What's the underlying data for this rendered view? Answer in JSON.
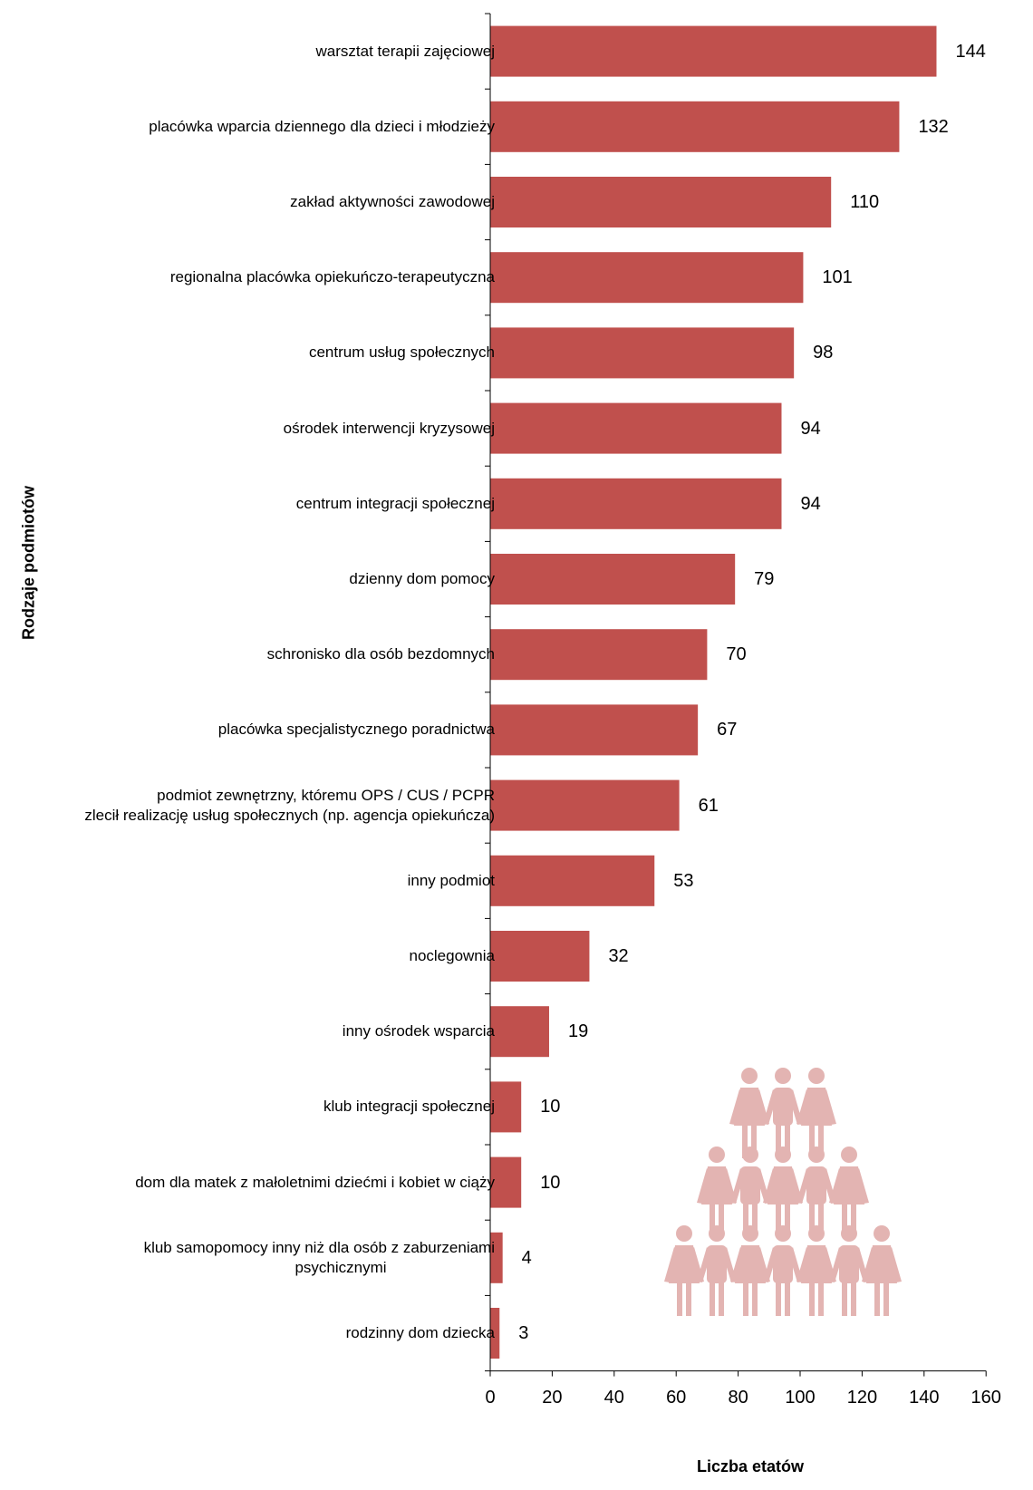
{
  "chart_data": {
    "type": "bar",
    "orientation": "horizontal",
    "xlabel": "Liczba etatów",
    "ylabel": "Rodzaje podmiotów",
    "xlim": [
      0,
      160
    ],
    "xticks": [
      "0",
      "20",
      "40",
      "60",
      "80",
      "100",
      "120",
      "140",
      "160"
    ],
    "grid": false,
    "bar_color": "#c0504d",
    "icon_color": "#e3b4b2",
    "icon": "people-pyramid-icon",
    "categories": [
      "warsztat terapii zajęciowej",
      "placówka wparcia dziennego dla dzieci i młodzieży",
      "zakład aktywności zawodowej",
      "regionalna placówka opiekuńczo-terapeutyczna",
      "centrum usług społecznych",
      "ośrodek interwencji kryzysowej",
      "centrum integracji społecznej",
      "dzienny dom pomocy",
      "schronisko dla osób bezdomnych",
      "placówka specjalistycznego poradnictwa",
      "podmiot zewnętrzny, któremu OPS / CUS / PCPR\nzlecił realizację usług społecznych (np. agencja opiekuńcza)",
      "inny podmiot",
      "noclegownia",
      "inny ośrodek wsparcia",
      "klub integracji społecznej",
      "dom dla matek z małoletnimi dziećmi i kobiet w ciąży",
      "klub samopomocy inny niż dla osób z zaburzeniami\npsychicznymi",
      "rodzinny dom dziecka"
    ],
    "values": [
      144,
      132,
      110,
      101,
      98,
      94,
      94,
      79,
      70,
      67,
      61,
      53,
      32,
      19,
      10,
      10,
      4,
      3
    ]
  }
}
